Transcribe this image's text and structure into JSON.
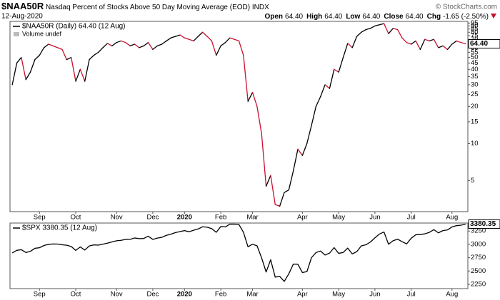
{
  "chart_data": [
    {
      "type": "line",
      "title": "$NAA50R",
      "subtitle": "Nasdaq Percent of Stocks Above 50 Day Moving Average (EOD)",
      "exchange": "INDX",
      "date": "12-Aug-2020",
      "watermark": "© StockCharts.com",
      "quote": [
        {
          "label": "Open",
          "value": "64.40"
        },
        {
          "label": "High",
          "value": "64.40"
        },
        {
          "label": "Low",
          "value": "64.40"
        },
        {
          "label": "Close",
          "value": "64.40"
        },
        {
          "label": "Chg",
          "value": "-1.65 (-2.50%)"
        }
      ],
      "note": "Volume undef",
      "log_scale": true,
      "ylim": [
        2.8,
        98
      ],
      "yticks": [
        95,
        90,
        85,
        80,
        75,
        70,
        65,
        60,
        55,
        50,
        45,
        40,
        35,
        30,
        25,
        20,
        15,
        10,
        5
      ],
      "categories": [
        null,
        null,
        null,
        null,
        null,
        null,
        "Sep",
        null,
        null,
        null,
        null,
        null,
        null,
        null,
        "Oct",
        null,
        null,
        null,
        null,
        null,
        null,
        null,
        null,
        "Nov",
        null,
        null,
        null,
        null,
        null,
        null,
        null,
        "Dec",
        null,
        null,
        null,
        null,
        null,
        null,
        "2020",
        null,
        null,
        null,
        null,
        null,
        null,
        null,
        "Feb",
        null,
        null,
        null,
        null,
        null,
        null,
        "Mar",
        null,
        null,
        null,
        null,
        null,
        null,
        null,
        null,
        null,
        null,
        "Apr",
        null,
        null,
        null,
        null,
        null,
        null,
        null,
        "May",
        null,
        null,
        null,
        null,
        null,
        null,
        null,
        "Jun",
        null,
        null,
        null,
        null,
        null,
        null,
        null,
        "Jul",
        null,
        null,
        null,
        null,
        null,
        null,
        null,
        null,
        "Aug",
        null,
        null,
        null
      ],
      "series": [
        {
          "name": "$NAA50R (Daily) 64.40 (12 Aug)",
          "color": "#000000",
          "down_color": "#c8102e",
          "last_label": "64.40",
          "values": [
            30,
            45,
            50,
            33,
            38,
            48,
            52,
            60,
            64,
            62,
            60,
            58,
            48,
            50,
            32,
            40,
            32,
            48,
            52,
            55,
            60,
            65,
            62,
            66,
            68,
            66,
            62,
            64,
            60,
            62,
            66,
            58,
            62,
            64,
            68,
            72,
            74,
            76,
            72,
            70,
            68,
            74,
            80,
            74,
            68,
            52,
            62,
            66,
            72,
            70,
            68,
            52,
            22,
            26,
            20,
            12,
            4.5,
            5.5,
            3.2,
            3.1,
            4,
            4.2,
            6,
            9,
            8,
            10,
            14,
            20,
            24,
            30,
            28,
            40,
            38,
            50,
            65,
            60,
            74,
            80,
            84,
            86,
            90,
            92,
            94,
            78,
            86,
            84,
            72,
            66,
            64,
            68,
            58,
            70,
            68,
            70,
            60,
            62,
            58,
            64,
            68,
            66,
            64.4
          ]
        }
      ]
    },
    {
      "type": "line",
      "log_scale": false,
      "ylim": [
        2170,
        3400
      ],
      "yticks": [
        3250,
        3000,
        2750,
        2500,
        2250
      ],
      "categories": [
        null,
        null,
        null,
        null,
        null,
        null,
        "Sep",
        null,
        null,
        null,
        null,
        null,
        null,
        null,
        "Oct",
        null,
        null,
        null,
        null,
        null,
        null,
        null,
        null,
        "Nov",
        null,
        null,
        null,
        null,
        null,
        null,
        null,
        "Dec",
        null,
        null,
        null,
        null,
        null,
        null,
        "2020",
        null,
        null,
        null,
        null,
        null,
        null,
        null,
        "Feb",
        null,
        null,
        null,
        null,
        null,
        null,
        "Mar",
        null,
        null,
        null,
        null,
        null,
        null,
        null,
        null,
        null,
        null,
        "Apr",
        null,
        null,
        null,
        null,
        null,
        null,
        null,
        "May",
        null,
        null,
        null,
        null,
        null,
        null,
        null,
        "Jun",
        null,
        null,
        null,
        null,
        null,
        null,
        null,
        "Jul",
        null,
        null,
        null,
        null,
        null,
        null,
        null,
        null,
        "Aug",
        null,
        null,
        null
      ],
      "series": [
        {
          "name": "$SPX 3380.35 (12 Aug)",
          "color": "#000000",
          "last_label": "3380.35",
          "values": [
            2840,
            2888,
            2900,
            2847,
            2869,
            2926,
            2937,
            2979,
            3000,
            3007,
            3006,
            2992,
            2984,
            2961,
            2887,
            2952,
            2893,
            2970,
            2990,
            2986,
            3004,
            3023,
            3046,
            3067,
            3076,
            3093,
            3094,
            3120,
            3108,
            3110,
            3153,
            3093,
            3117,
            3132,
            3169,
            3191,
            3221,
            3240,
            3258,
            3237,
            3265,
            3289,
            3330,
            3321,
            3295,
            3226,
            3334,
            3328,
            3379,
            3380,
            3373,
            3226,
            2954,
            3003,
            2972,
            2747,
            2481,
            2711,
            2386,
            2398,
            2305,
            2447,
            2630,
            2627,
            2471,
            2489,
            2750,
            2846,
            2875,
            2799,
            2837,
            2939,
            2831,
            2848,
            2930,
            2820,
            2864,
            2972,
            2992,
            3044,
            3122,
            3194,
            3232,
            3002,
            3067,
            3098,
            3050,
            3009,
            3115,
            3180,
            3185,
            3197,
            3225,
            3276,
            3216,
            3258,
            3271,
            3327,
            3351,
            3360,
            3380.35
          ]
        }
      ]
    }
  ]
}
